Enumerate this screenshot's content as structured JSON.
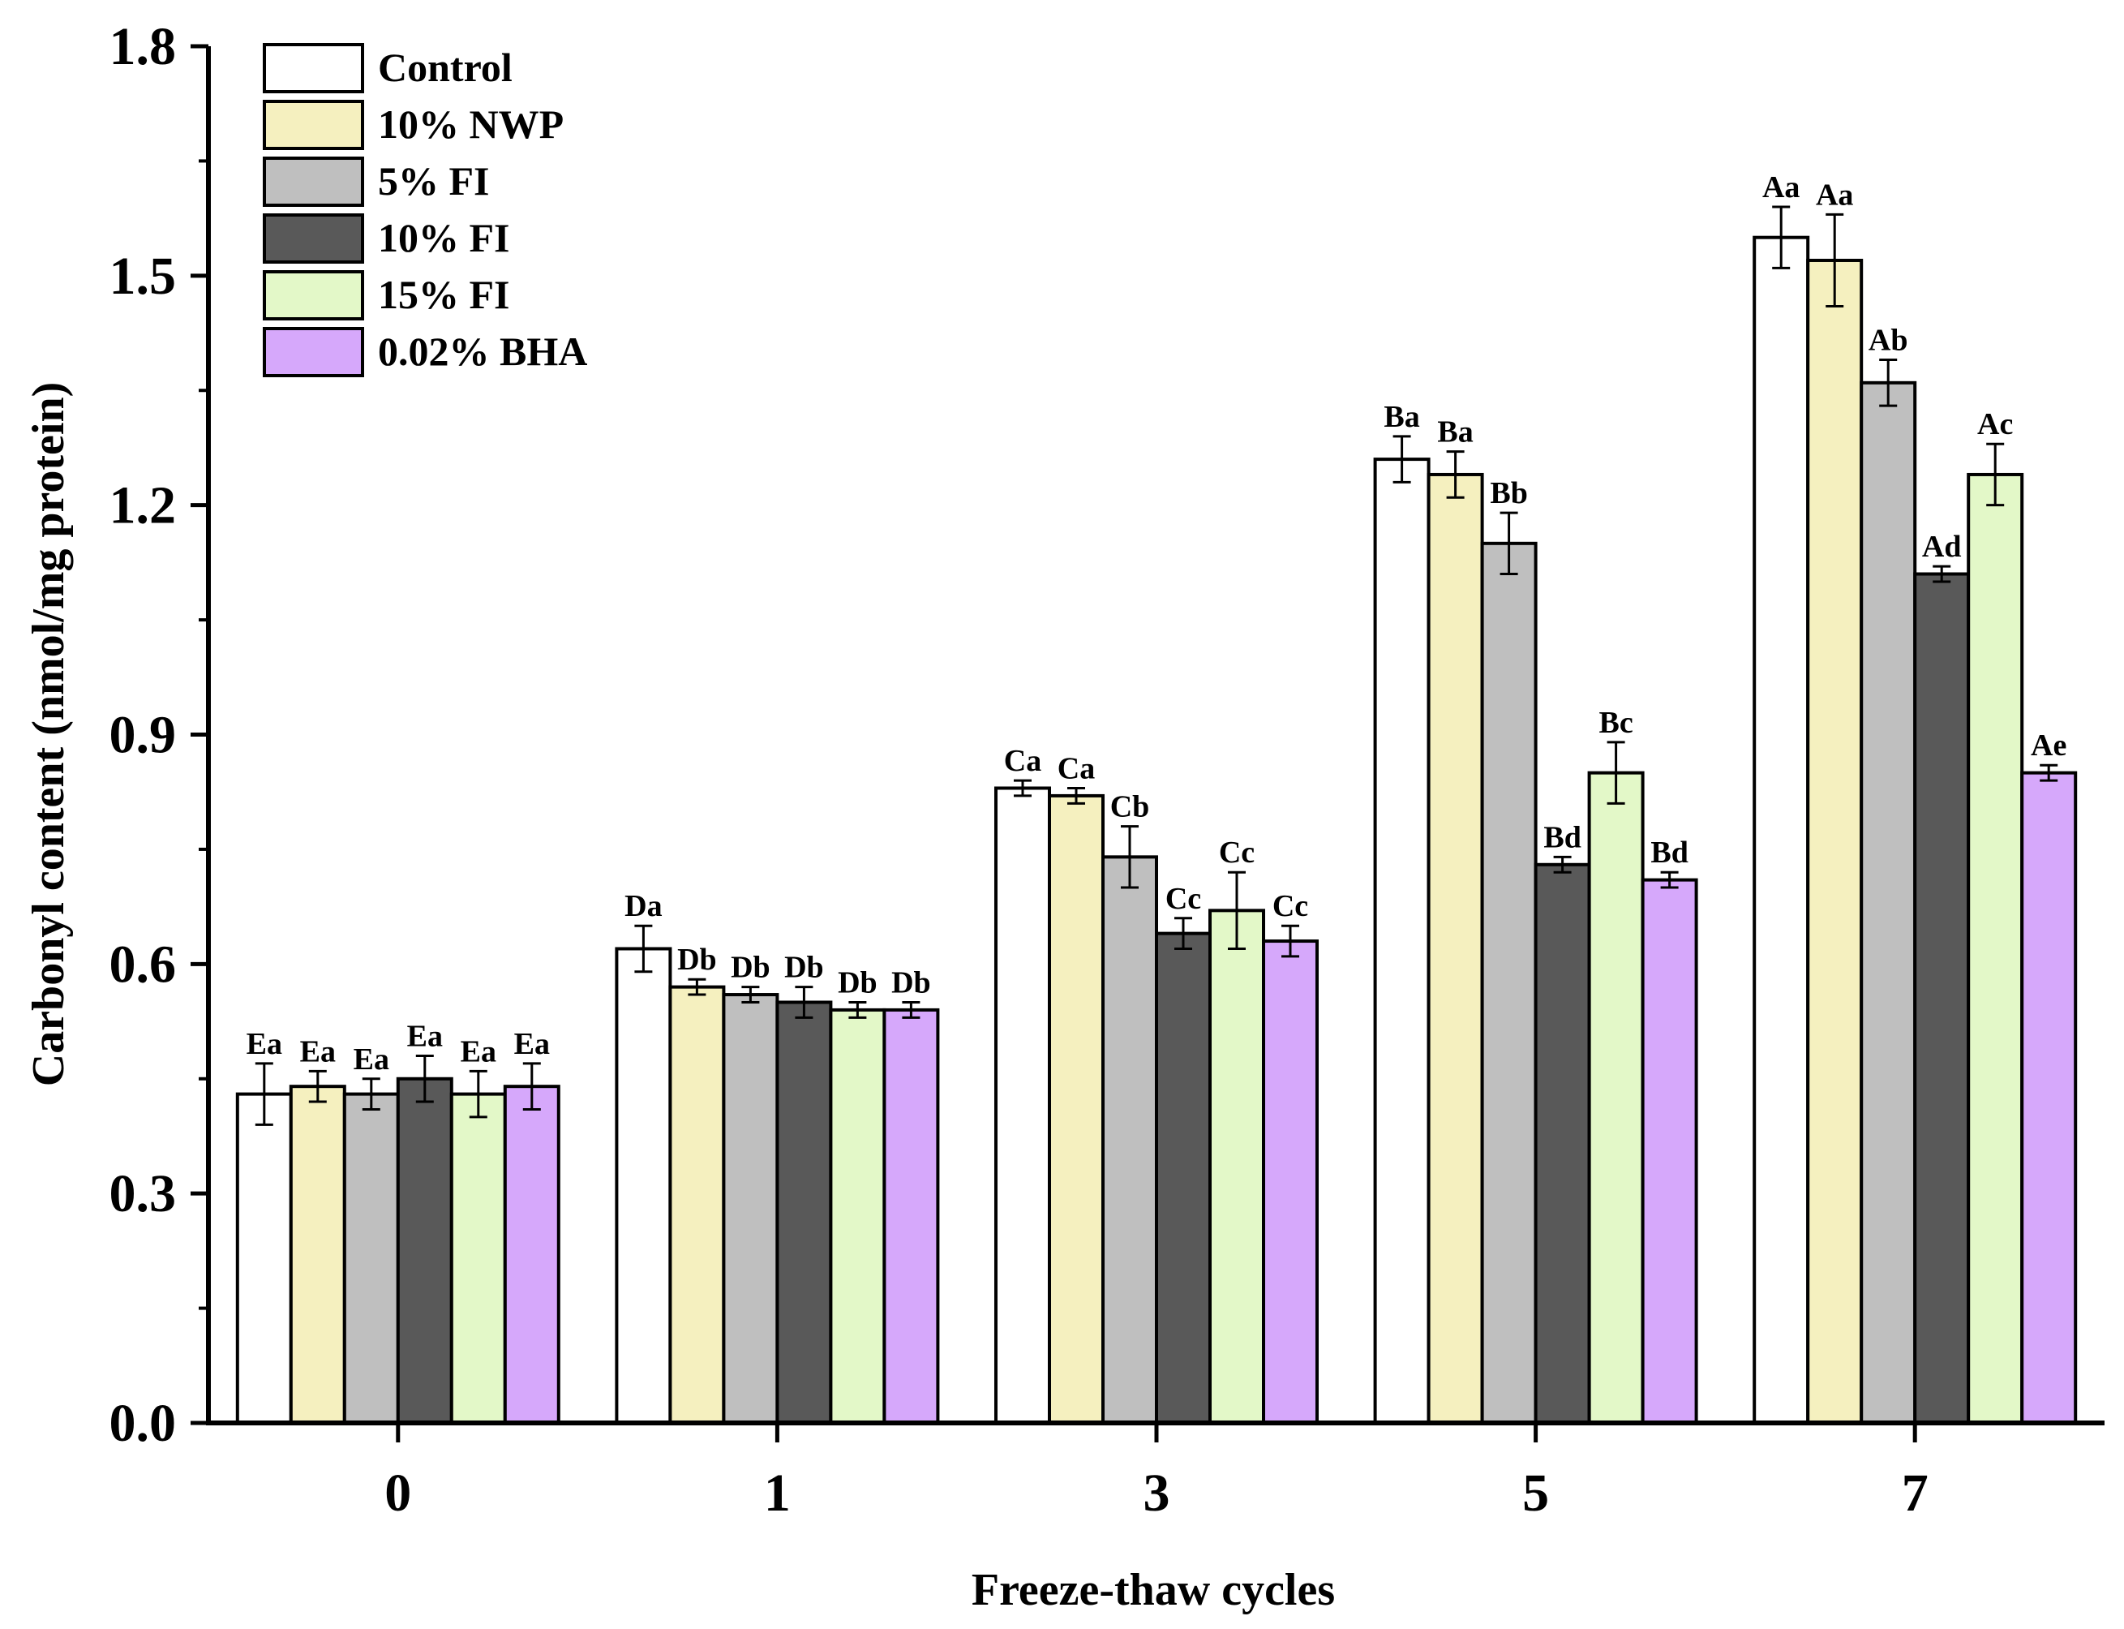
{
  "chart_data": {
    "type": "bar",
    "xlabel": "Freeze-thaw cycles",
    "ylabel": "Carbonyl content  (nmol/mg protein)",
    "categories": [
      "0",
      "1",
      "3",
      "5",
      "7"
    ],
    "ylim": [
      0,
      1.8
    ],
    "yticks": [
      "0.0",
      "0.3",
      "0.6",
      "0.9",
      "1.2",
      "1.5",
      "1.8"
    ],
    "grid": false,
    "legend_position": "top-left",
    "series": [
      {
        "name": "Control",
        "color": "#ffffff",
        "values": [
          0.43,
          0.62,
          0.83,
          1.26,
          1.55
        ],
        "errors": [
          0.04,
          0.03,
          0.01,
          0.03,
          0.04
        ],
        "labels": [
          "Ea",
          "Da",
          "Ca",
          "Ba",
          "Aa"
        ]
      },
      {
        "name": "10% NWP",
        "color": "#f5f0bf",
        "values": [
          0.44,
          0.57,
          0.82,
          1.24,
          1.52
        ],
        "errors": [
          0.02,
          0.01,
          0.01,
          0.03,
          0.06
        ],
        "labels": [
          "Ea",
          "Db",
          "Ca",
          "Ba",
          "Aa"
        ]
      },
      {
        "name": "5% FI",
        "color": "#bfbfbf",
        "values": [
          0.43,
          0.56,
          0.74,
          1.15,
          1.36
        ],
        "errors": [
          0.02,
          0.01,
          0.04,
          0.04,
          0.03
        ],
        "labels": [
          "Ea",
          "Db",
          "Cb",
          "Bb",
          "Ab"
        ]
      },
      {
        "name": "10% FI",
        "color": "#595959",
        "values": [
          0.45,
          0.55,
          0.64,
          0.73,
          1.11
        ],
        "errors": [
          0.03,
          0.02,
          0.02,
          0.01,
          0.01
        ],
        "labels": [
          "Ea",
          "Db",
          "Cc",
          "Bd",
          "Ad"
        ]
      },
      {
        "name": "15% FI",
        "color": "#e3f8c8",
        "values": [
          0.43,
          0.54,
          0.67,
          0.85,
          1.24
        ],
        "errors": [
          0.03,
          0.01,
          0.05,
          0.04,
          0.04
        ],
        "labels": [
          "Ea",
          "Db",
          "Cc",
          "Bc",
          "Ac"
        ]
      },
      {
        "name": "0.02% BHA",
        "color": "#d6a8fb",
        "values": [
          0.44,
          0.54,
          0.63,
          0.71,
          0.85
        ],
        "errors": [
          0.03,
          0.01,
          0.02,
          0.01,
          0.01
        ],
        "labels": [
          "Ea",
          "Db",
          "Cc",
          "Bd",
          "Ae"
        ]
      }
    ]
  }
}
